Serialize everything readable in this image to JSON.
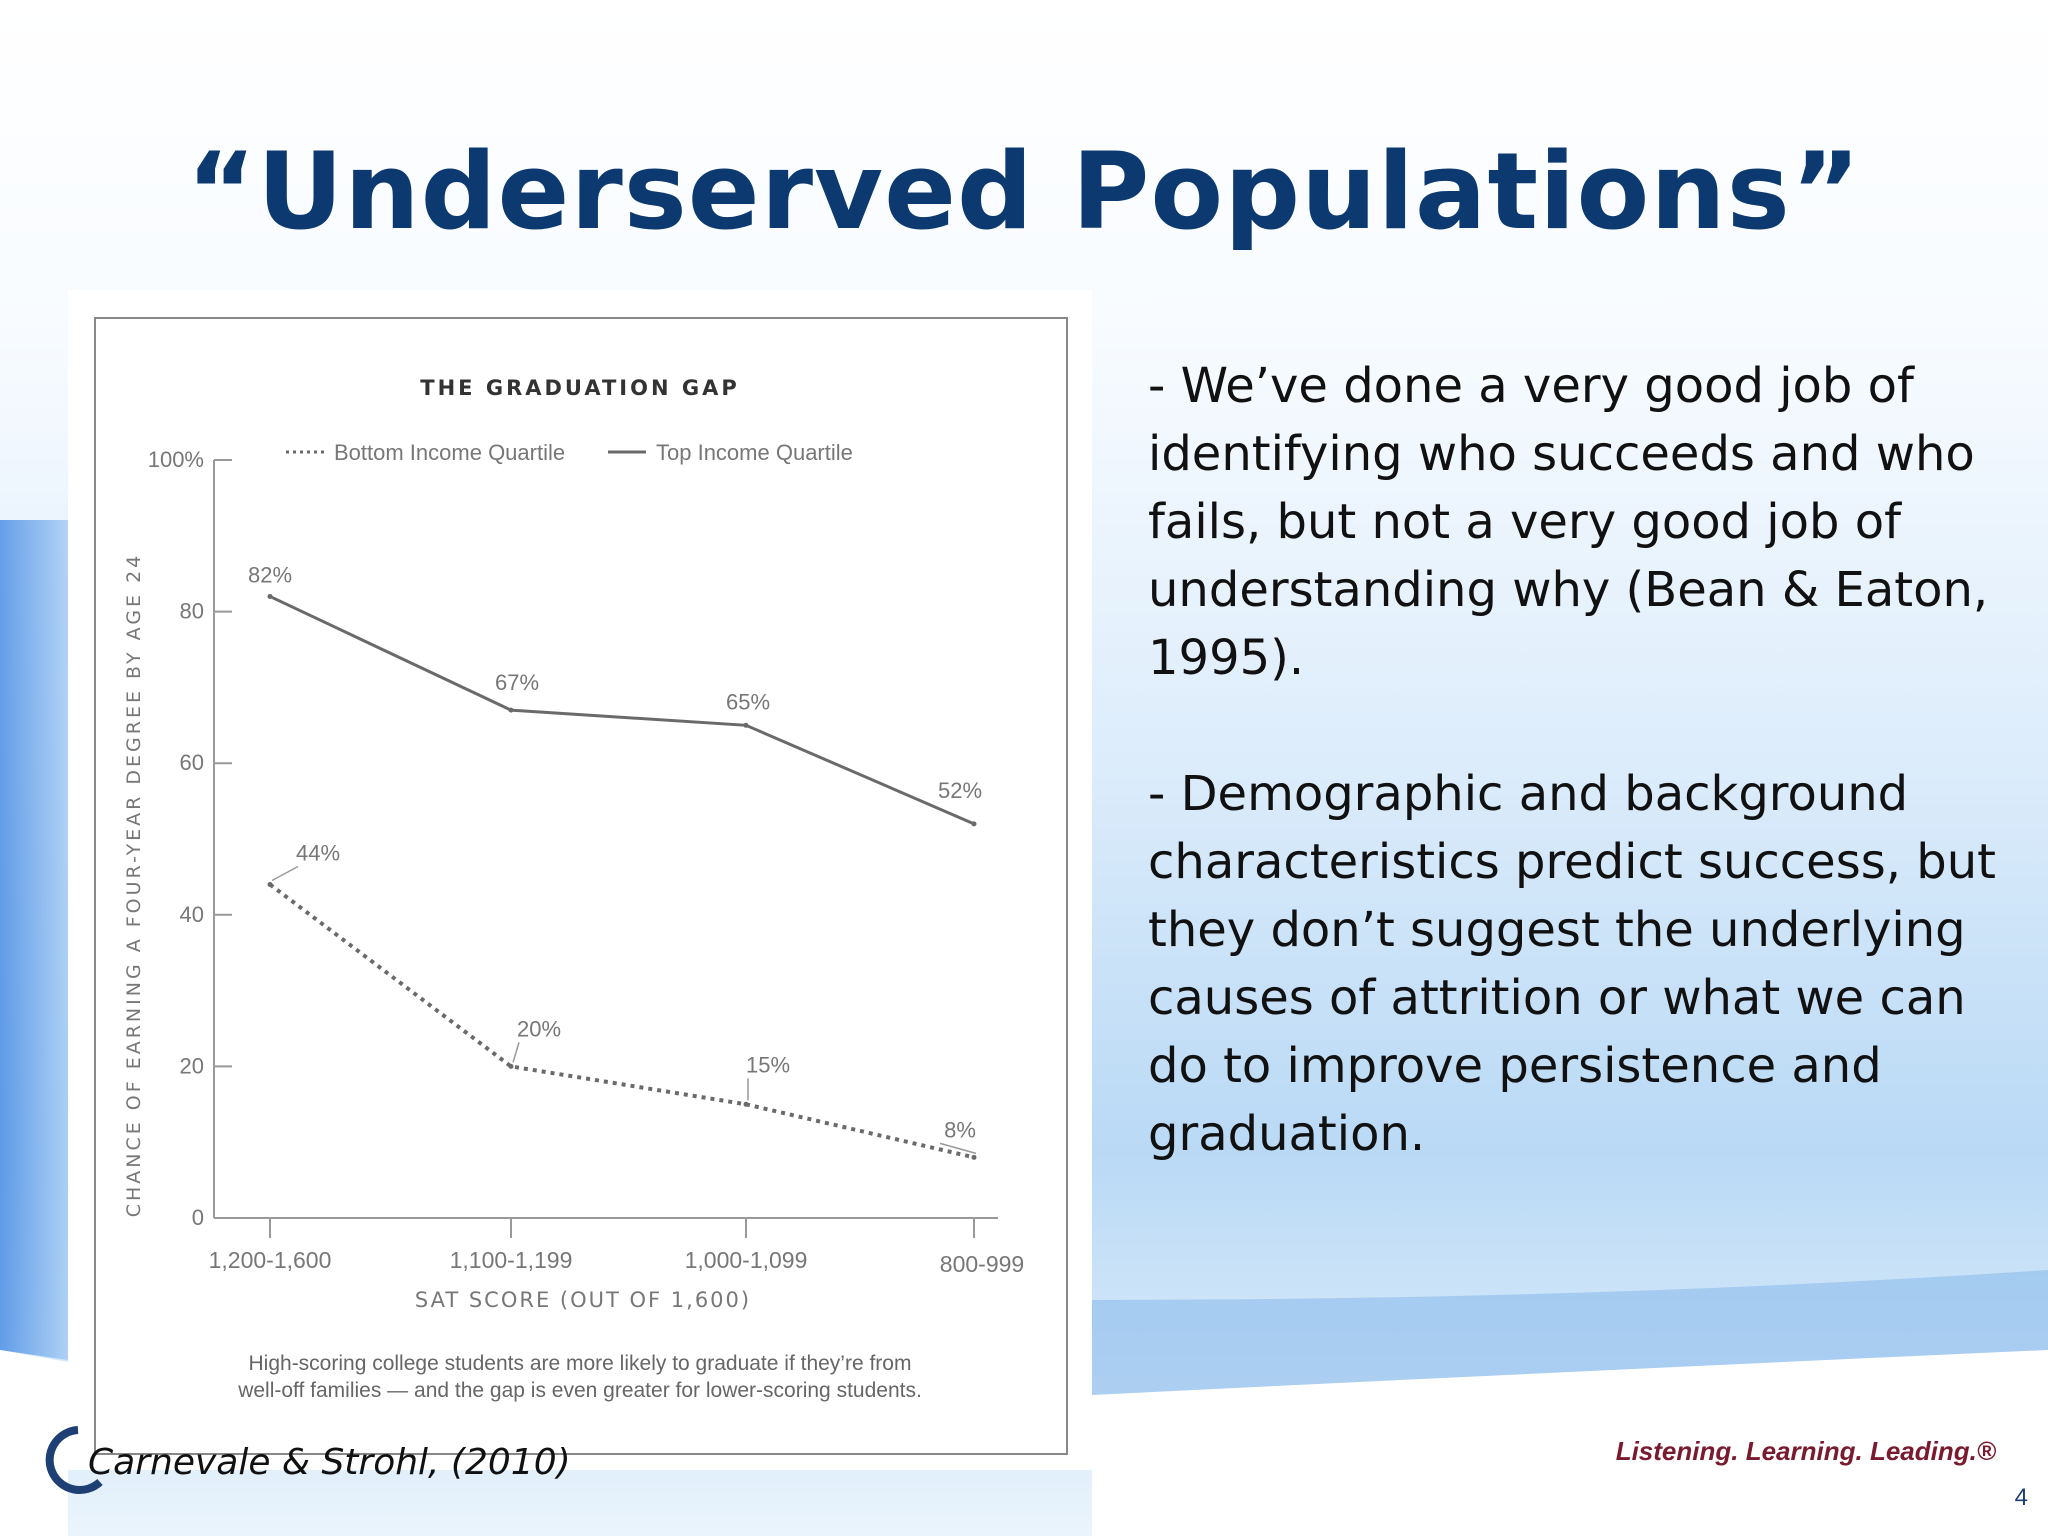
{
  "slide": {
    "title": "“Underserved Populations”",
    "bullets": [
      " - We’ve done a very good job of identifying who succeeds and who fails, but not a very good job of understanding why (Bean & Eaton, 1995).",
      " - Demographic and background characteristics predict success, but they don’t suggest the underlying causes of attrition or what we can do to improve persistence and graduation."
    ],
    "citation": "Carnevale & Strohl, (2010)",
    "tagline": "Listening. Learning. Leading.®",
    "page_number": "4"
  },
  "colors": {
    "title": "#0c3a70",
    "line": "#6a6a6a",
    "axis_text": "#777777"
  },
  "chart_data": {
    "type": "line",
    "title": "THE GRADUATION GAP",
    "xlabel": "SAT SCORE (OUT OF 1,600)",
    "ylabel": "CHANCE OF EARNING A FOUR-YEAR DEGREE BY AGE 24",
    "categories": [
      "1,200-1,600",
      "1,100-1,199",
      "1,000-1,099",
      "800-999"
    ],
    "ylim": [
      0,
      100
    ],
    "yticks": [
      "0",
      "20",
      "40",
      "60",
      "80",
      "100%"
    ],
    "series": [
      {
        "name": "Bottom Income Quartile",
        "style": "dotted",
        "values": [
          44,
          20,
          15,
          8
        ],
        "labels": [
          "44%",
          "20%",
          "15%",
          "8%"
        ]
      },
      {
        "name": "Top Income Quartile",
        "style": "solid",
        "values": [
          82,
          67,
          65,
          52
        ],
        "labels": [
          "82%",
          "67%",
          "65%",
          "52%"
        ]
      }
    ],
    "legend": "top",
    "grid": false,
    "caption": [
      "High-scoring college students are more likely to graduate if they’re from",
      "well-off families — and the gap is even greater for lower-scoring students."
    ]
  }
}
